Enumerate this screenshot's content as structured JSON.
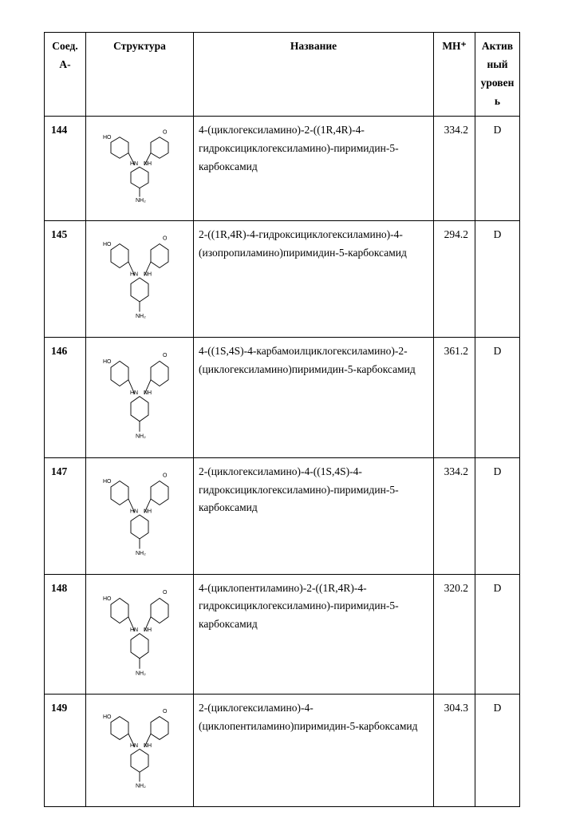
{
  "headers": {
    "id": "Соед. А-",
    "structure": "Структура",
    "name": "Название",
    "mh": "MH⁺",
    "activity": "Актив\nный\nуровен\nь"
  },
  "rows": [
    {
      "id": "144",
      "name": "4-(циклогексиламино)-2-((1R,4R)-4-гидроксициклогексиламино)-пиримидин-5-карбоксамид",
      "mh": "334.2",
      "activity": "D",
      "struct_h": 110
    },
    {
      "id": "145",
      "name": "2-((1R,4R)-4-гидроксициклогексиламино)-4-(изопропиламино)пиримидин-5-карбоксамид",
      "mh": "294.2",
      "activity": "D",
      "struct_h": 125
    },
    {
      "id": "146",
      "name": "4-((1S,4S)-4-карбамоилциклогексиламино)-2-(циклогексиламино)пиримидин-5-карбоксамид",
      "mh": "361.2",
      "activity": "D",
      "struct_h": 130
    },
    {
      "id": "147",
      "name": "2-(циклогексиламино)-4-((1S,4S)-4-гидроксициклогексиламино)-пиримидин-5-карбоксамид",
      "mh": "334.2",
      "activity": "D",
      "struct_h": 125
    },
    {
      "id": "148",
      "name": "4-(циклопентиламино)-2-((1R,4R)-4-гидроксициклогексиламино)-пиримидин-5-карбоксамид",
      "mh": "320.2",
      "activity": "D",
      "struct_h": 130
    },
    {
      "id": "149",
      "name": "2-(циклогексиламино)-4-(циклопентиламино)пиримидин-5-карбоксамид",
      "mh": "304.3",
      "activity": "D",
      "struct_h": 120
    }
  ],
  "svg_stroke": "#000000",
  "svg_stroke_width": 0.9
}
